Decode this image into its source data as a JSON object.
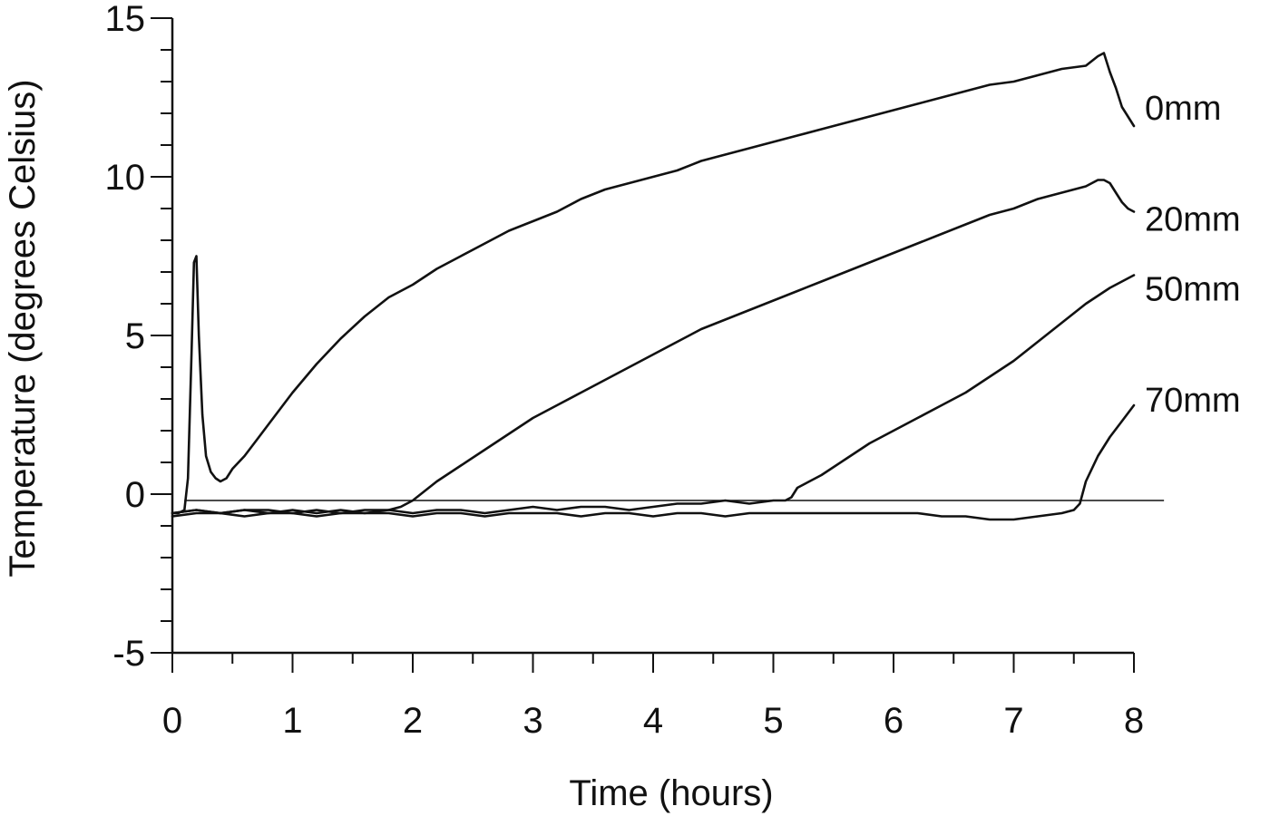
{
  "chart_data": {
    "type": "line",
    "title": "",
    "xlabel": "Time (hours)",
    "ylabel": "Temperature  (degrees Celsius)",
    "xlim": [
      0,
      8
    ],
    "ylim": [
      -5,
      15
    ],
    "x_ticks": [
      0,
      1,
      2,
      3,
      4,
      5,
      6,
      7,
      8
    ],
    "y_ticks": [
      -5,
      0,
      5,
      10,
      15
    ],
    "x_minor_step": 0.5,
    "y_minor_step": 1,
    "grid": false,
    "legend": "inline labels at right end of each series",
    "reference_line": {
      "y": -0.2,
      "x_range": [
        0.1,
        8.25
      ]
    },
    "series": [
      {
        "name": "0mm",
        "x": [
          0.0,
          0.05,
          0.1,
          0.13,
          0.16,
          0.18,
          0.2,
          0.22,
          0.25,
          0.28,
          0.32,
          0.36,
          0.4,
          0.45,
          0.5,
          0.6,
          0.7,
          0.8,
          1.0,
          1.2,
          1.4,
          1.6,
          1.8,
          2.0,
          2.2,
          2.4,
          2.6,
          2.8,
          3.0,
          3.2,
          3.4,
          3.6,
          3.8,
          4.0,
          4.2,
          4.4,
          4.6,
          4.8,
          5.0,
          5.2,
          5.4,
          5.6,
          5.8,
          6.0,
          6.2,
          6.4,
          6.6,
          6.8,
          7.0,
          7.2,
          7.4,
          7.6,
          7.7,
          7.75,
          7.8,
          7.85,
          7.9,
          7.95,
          8.0
        ],
        "values": [
          -0.6,
          -0.6,
          -0.5,
          0.5,
          4.5,
          7.3,
          7.5,
          5.0,
          2.5,
          1.2,
          0.7,
          0.5,
          0.4,
          0.5,
          0.8,
          1.2,
          1.7,
          2.2,
          3.2,
          4.1,
          4.9,
          5.6,
          6.2,
          6.6,
          7.1,
          7.5,
          7.9,
          8.3,
          8.6,
          8.9,
          9.3,
          9.6,
          9.8,
          10.0,
          10.2,
          10.5,
          10.7,
          10.9,
          11.1,
          11.3,
          11.5,
          11.7,
          11.9,
          12.1,
          12.3,
          12.5,
          12.7,
          12.9,
          13.0,
          13.2,
          13.4,
          13.5,
          13.8,
          13.9,
          13.3,
          12.8,
          12.2,
          11.9,
          11.6
        ]
      },
      {
        "name": "20mm",
        "x": [
          0.0,
          0.2,
          0.4,
          0.6,
          0.8,
          1.0,
          1.2,
          1.4,
          1.6,
          1.8,
          1.9,
          1.95,
          2.0,
          2.2,
          2.4,
          2.6,
          2.8,
          3.0,
          3.2,
          3.4,
          3.6,
          3.8,
          4.0,
          4.2,
          4.4,
          4.6,
          4.8,
          5.0,
          5.2,
          5.4,
          5.6,
          5.8,
          6.0,
          6.2,
          6.4,
          6.6,
          6.8,
          7.0,
          7.2,
          7.4,
          7.6,
          7.7,
          7.75,
          7.8,
          7.85,
          7.9,
          7.95,
          8.0
        ],
        "values": [
          -0.6,
          -0.5,
          -0.6,
          -0.5,
          -0.6,
          -0.5,
          -0.6,
          -0.5,
          -0.6,
          -0.5,
          -0.4,
          -0.3,
          -0.2,
          0.4,
          0.9,
          1.4,
          1.9,
          2.4,
          2.8,
          3.2,
          3.6,
          4.0,
          4.4,
          4.8,
          5.2,
          5.5,
          5.8,
          6.1,
          6.4,
          6.7,
          7.0,
          7.3,
          7.6,
          7.9,
          8.2,
          8.5,
          8.8,
          9.0,
          9.3,
          9.5,
          9.7,
          9.9,
          9.9,
          9.8,
          9.5,
          9.2,
          9.0,
          8.9
        ]
      },
      {
        "name": "50mm",
        "x": [
          0.0,
          0.2,
          0.4,
          0.6,
          0.8,
          1.0,
          1.2,
          1.4,
          1.6,
          1.8,
          2.0,
          2.2,
          2.4,
          2.6,
          2.8,
          3.0,
          3.2,
          3.4,
          3.6,
          3.8,
          4.0,
          4.2,
          4.4,
          4.6,
          4.8,
          5.0,
          5.1,
          5.15,
          5.2,
          5.4,
          5.6,
          5.8,
          6.0,
          6.2,
          6.4,
          6.6,
          6.8,
          7.0,
          7.2,
          7.4,
          7.6,
          7.8,
          8.0
        ],
        "values": [
          -0.6,
          -0.5,
          -0.6,
          -0.5,
          -0.5,
          -0.6,
          -0.5,
          -0.6,
          -0.5,
          -0.5,
          -0.6,
          -0.5,
          -0.5,
          -0.6,
          -0.5,
          -0.4,
          -0.5,
          -0.4,
          -0.4,
          -0.5,
          -0.4,
          -0.3,
          -0.3,
          -0.2,
          -0.3,
          -0.2,
          -0.2,
          -0.1,
          0.2,
          0.6,
          1.1,
          1.6,
          2.0,
          2.4,
          2.8,
          3.2,
          3.7,
          4.2,
          4.8,
          5.4,
          6.0,
          6.5,
          6.9
        ]
      },
      {
        "name": "70mm",
        "x": [
          0.0,
          0.2,
          0.4,
          0.6,
          0.8,
          1.0,
          1.2,
          1.4,
          1.6,
          1.8,
          2.0,
          2.2,
          2.4,
          2.6,
          2.8,
          3.0,
          3.2,
          3.4,
          3.6,
          3.8,
          4.0,
          4.2,
          4.4,
          4.6,
          4.8,
          5.0,
          5.2,
          5.4,
          5.6,
          5.8,
          6.0,
          6.2,
          6.4,
          6.6,
          6.8,
          7.0,
          7.2,
          7.4,
          7.5,
          7.55,
          7.6,
          7.7,
          7.8,
          7.9,
          8.0
        ],
        "values": [
          -0.7,
          -0.6,
          -0.6,
          -0.7,
          -0.6,
          -0.6,
          -0.7,
          -0.6,
          -0.6,
          -0.6,
          -0.7,
          -0.6,
          -0.6,
          -0.7,
          -0.6,
          -0.6,
          -0.6,
          -0.7,
          -0.6,
          -0.6,
          -0.7,
          -0.6,
          -0.6,
          -0.7,
          -0.6,
          -0.6,
          -0.6,
          -0.6,
          -0.6,
          -0.6,
          -0.6,
          -0.6,
          -0.7,
          -0.7,
          -0.8,
          -0.8,
          -0.7,
          -0.6,
          -0.5,
          -0.3,
          0.4,
          1.2,
          1.8,
          2.3,
          2.8
        ]
      }
    ]
  }
}
